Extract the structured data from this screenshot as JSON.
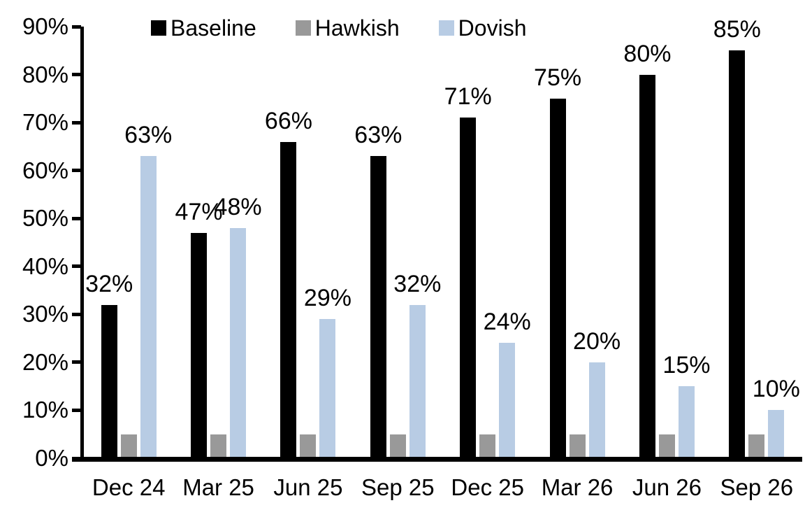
{
  "chart_data": {
    "type": "bar",
    "categories": [
      "Dec 24",
      "Mar 25",
      "Jun 25",
      "Sep 25",
      "Dec 25",
      "Mar 26",
      "Jun 26",
      "Sep 26"
    ],
    "series": [
      {
        "name": "Baseline",
        "color": "#000000",
        "values": [
          32,
          47,
          66,
          63,
          71,
          75,
          80,
          85
        ],
        "data_labels": [
          "32%",
          "47%",
          "66%",
          "63%",
          "71%",
          "75%",
          "80%",
          "85%"
        ]
      },
      {
        "name": "Hawkish",
        "color": "#999999",
        "values": [
          5,
          5,
          5,
          5,
          5,
          5,
          5,
          5
        ],
        "data_labels": null
      },
      {
        "name": "Dovish",
        "color": "#B8CCE4",
        "values": [
          63,
          48,
          29,
          32,
          24,
          20,
          15,
          10
        ],
        "data_labels": [
          "63%",
          "48%",
          "29%",
          "32%",
          "24%",
          "20%",
          "15%",
          "10%"
        ]
      }
    ],
    "ylim": [
      0,
      90
    ],
    "ytick_step": 10,
    "ytick_labels": [
      "0%",
      "10%",
      "20%",
      "30%",
      "40%",
      "50%",
      "60%",
      "70%",
      "80%",
      "90%"
    ],
    "xlabel": "",
    "ylabel": "",
    "grid": false,
    "legend_position": "top",
    "axis_color": "#000000"
  }
}
